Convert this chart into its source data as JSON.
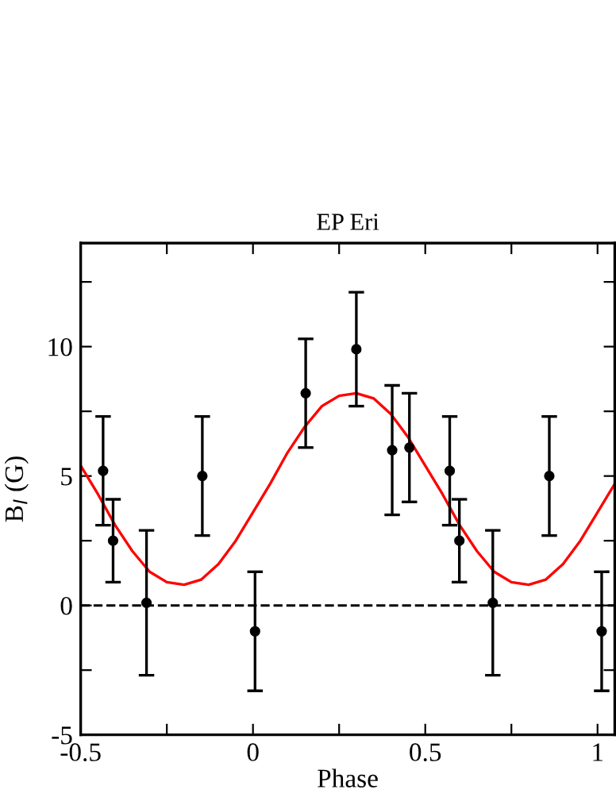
{
  "chart_data": {
    "type": "scatter",
    "title": "EP Eri",
    "xlabel": "Phase",
    "ylabel": "B$_{l}$ (G)",
    "xlim": [
      -0.5,
      1.05
    ],
    "ylim": [
      -5,
      14
    ],
    "xticks": [
      -0.5,
      {
        "value": -0.25,
        "label": null
      },
      0,
      {
        "value": 0.25,
        "label": null
      },
      0.5,
      {
        "value": 0.75,
        "label": null
      },
      1
    ],
    "yticks": [
      -5,
      {
        "value": -2.5,
        "label": null
      },
      0,
      {
        "value": 2.5,
        "label": null
      },
      5,
      {
        "value": 7.5,
        "label": null
      },
      10,
      {
        "value": 12.5,
        "label": null
      }
    ],
    "grid": false,
    "legend": false,
    "marker": "circle",
    "ref_lines": [
      {
        "axis": "y",
        "value": 0,
        "color": "#000000",
        "line_style": "dashed"
      }
    ],
    "series": [
      {
        "color": "#000000",
        "x": [
          -0.435,
          -0.406,
          -0.309,
          -0.147,
          0.006,
          0.153,
          0.3,
          0.404,
          0.454,
          0.571,
          0.599,
          0.696,
          0.86,
          1.012
        ],
        "values": [
          5.2,
          2.5,
          0.1,
          5.0,
          -1.0,
          8.2,
          9.9,
          6.0,
          6.1,
          5.2,
          2.5,
          0.1,
          5.0,
          -1.0
        ],
        "errors": [
          2.1,
          1.6,
          2.8,
          2.3,
          2.3,
          2.1,
          2.2,
          2.5,
          2.1,
          2.1,
          1.6,
          2.8,
          2.3,
          2.3
        ]
      },
      {
        "type": "line",
        "color": "#ff0000",
        "marker": "none",
        "line_style": "solid",
        "x": [
          -0.5,
          -0.45,
          -0.4,
          -0.35,
          -0.3,
          -0.25,
          -0.2,
          -0.15,
          -0.1,
          -0.05,
          0,
          0.05,
          0.1,
          0.15,
          0.2,
          0.25,
          0.3,
          0.35,
          0.4,
          0.45,
          0.5,
          0.55,
          0.6,
          0.65,
          0.7,
          0.75,
          0.8,
          0.85,
          0.9,
          0.95,
          1.0,
          1.05
        ],
        "values": [
          5.4,
          4.3,
          3.1,
          2.1,
          1.3,
          0.9,
          0.8,
          1.0,
          1.6,
          2.5,
          3.6,
          4.7,
          5.9,
          6.9,
          7.7,
          8.1,
          8.2,
          8.0,
          7.4,
          6.5,
          5.4,
          4.3,
          3.1,
          2.1,
          1.3,
          0.9,
          0.8,
          1.0,
          1.6,
          2.5,
          3.6,
          4.7
        ]
      }
    ]
  }
}
